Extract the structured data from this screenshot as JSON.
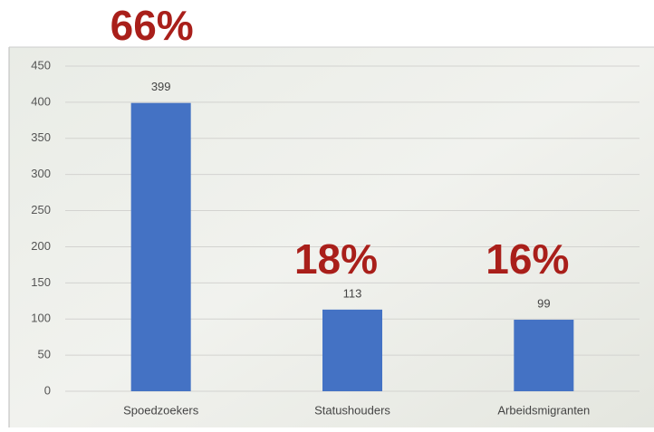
{
  "chart_data": {
    "type": "bar",
    "categories": [
      "Spoedzoekers",
      "Statushouders",
      "Arbeidsmigranten"
    ],
    "values": [
      399,
      113,
      99
    ],
    "color": "#4472c4",
    "ylim": [
      0,
      450
    ],
    "yticks": [
      0,
      50,
      100,
      150,
      200,
      250,
      300,
      350,
      400,
      450
    ],
    "grid": true,
    "annotations": [
      "66%",
      "18%",
      "16%"
    ]
  }
}
